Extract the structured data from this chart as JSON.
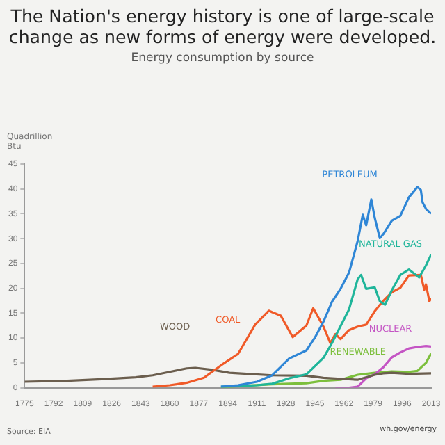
{
  "chart_data": {
    "type": "line",
    "title": "The Nation's energy history is one of large-scale change as new forms of energy were developed.",
    "subtitle": "Energy consumption by source",
    "ylabel": "Quadrillion Btu",
    "annotations": [
      "Source: EIA",
      "wh.gov/energy"
    ],
    "xlim": [
      1775,
      2013
    ],
    "xticks": [
      1775,
      1792,
      1809,
      1826,
      1843,
      1860,
      1877,
      1894,
      1911,
      1928,
      1945,
      1962,
      1979,
      1996,
      2013
    ],
    "ylim": [
      0,
      45
    ],
    "yticks": [
      0,
      5,
      10,
      15,
      20,
      25,
      30,
      35,
      40,
      45
    ],
    "grid": false,
    "legend": false,
    "marker": "none",
    "line_style": "solid",
    "series": [
      {
        "name": "PETROLEUM",
        "color": "#2f86d6",
        "x": [
          1890,
          1900,
          1911,
          1920,
          1930,
          1940,
          1945,
          1950,
          1955,
          1960,
          1965,
          1970,
          1973,
          1975,
          1978,
          1980,
          1983,
          1985,
          1990,
          1995,
          2000,
          2005,
          2007,
          2008,
          2010,
          2013
        ],
        "values": [
          0.2,
          0.5,
          1.2,
          2.5,
          5.9,
          7.5,
          10.1,
          13.3,
          17.3,
          19.9,
          23.2,
          29.5,
          34.8,
          32.7,
          37.9,
          34.2,
          30.1,
          30.9,
          33.6,
          34.6,
          38.3,
          40.4,
          39.8,
          37.3,
          36.0,
          35.0
        ]
      },
      {
        "name": "NATURAL GAS",
        "color": "#1fb59a",
        "x": [
          1890,
          1900,
          1911,
          1920,
          1930,
          1940,
          1950,
          1955,
          1960,
          1965,
          1970,
          1972,
          1975,
          1980,
          1983,
          1986,
          1990,
          1995,
          2000,
          2006,
          2010,
          2013
        ],
        "values": [
          0.2,
          0.3,
          0.5,
          0.8,
          1.9,
          2.7,
          6.0,
          9.0,
          12.4,
          15.8,
          21.8,
          22.7,
          19.9,
          20.2,
          17.4,
          16.7,
          19.6,
          22.7,
          23.8,
          22.2,
          24.6,
          26.8
        ]
      },
      {
        "name": "COAL",
        "color": "#f05a28",
        "x": [
          1850,
          1860,
          1870,
          1880,
          1890,
          1900,
          1910,
          1918,
          1920,
          1925,
          1932,
          1940,
          1944,
          1950,
          1954,
          1957,
          1960,
          1965,
          1970,
          1975,
          1980,
          1985,
          1990,
          1995,
          2000,
          2007,
          2009,
          2010,
          2012,
          2013
        ],
        "values": [
          0.2,
          0.5,
          1.0,
          2.0,
          4.5,
          6.8,
          12.7,
          15.5,
          15.2,
          14.5,
          10.2,
          12.5,
          16.0,
          12.3,
          9.0,
          10.8,
          9.8,
          11.6,
          12.3,
          12.7,
          15.4,
          17.5,
          19.2,
          20.1,
          22.6,
          22.7,
          19.7,
          20.8,
          17.4,
          18.0
        ]
      },
      {
        "name": "WOOD",
        "color": "#6b5e4e",
        "x": [
          1775,
          1800,
          1820,
          1840,
          1850,
          1860,
          1870,
          1875,
          1885,
          1895,
          1900,
          1920,
          1940,
          1950,
          1960,
          1970,
          1980,
          1985,
          1990,
          2000,
          2013
        ],
        "values": [
          1.2,
          1.4,
          1.7,
          2.1,
          2.5,
          3.2,
          3.9,
          4.0,
          3.6,
          3.0,
          2.9,
          2.5,
          2.4,
          2.0,
          1.8,
          1.6,
          2.6,
          2.9,
          3.0,
          2.8,
          2.9
        ]
      },
      {
        "name": "NUCLEAR",
        "color": "#c455c4",
        "x": [
          1957,
          1965,
          1970,
          1975,
          1980,
          1985,
          1990,
          1995,
          2000,
          2005,
          2010,
          2013
        ],
        "values": [
          0.0,
          0.0,
          0.2,
          1.9,
          2.7,
          4.1,
          6.1,
          7.1,
          7.9,
          8.2,
          8.4,
          8.3
        ]
      },
      {
        "name": "RENEWABLE",
        "color": "#7cbf3c",
        "x": [
          1890,
          1900,
          1920,
          1940,
          1950,
          1960,
          1970,
          1980,
          1990,
          2000,
          2005,
          2010,
          2013
        ],
        "values": [
          0.0,
          0.3,
          0.7,
          0.9,
          1.4,
          1.6,
          2.6,
          3.0,
          3.3,
          3.2,
          3.4,
          5.0,
          6.9
        ]
      }
    ]
  }
}
